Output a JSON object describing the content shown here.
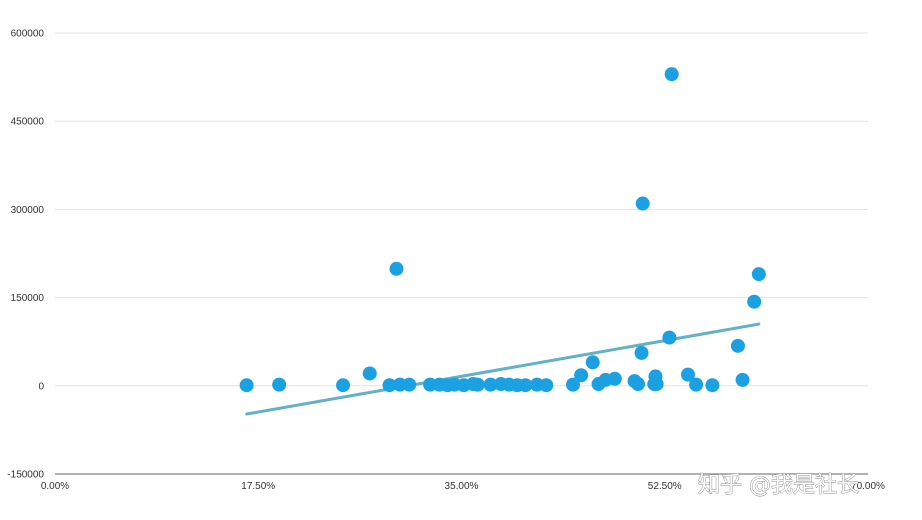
{
  "chart_data": {
    "type": "scatter",
    "title": "",
    "xlabel": "",
    "ylabel": "",
    "xlim": [
      0,
      70
    ],
    "ylim": [
      -150000,
      600000
    ],
    "x_ticks": [
      "0.00%",
      "17.50%",
      "35.00%",
      "52.50%",
      "70.00%"
    ],
    "y_ticks": [
      "600000",
      "450000",
      "300000",
      "150000",
      "0",
      "-150000"
    ],
    "grid": true,
    "point_color": "#1ba1e2",
    "trend_color": "#5fb4cc",
    "series": [
      {
        "values": [
          [
            16.5,
            1000
          ],
          [
            19.3,
            2000
          ],
          [
            24.8,
            1000
          ],
          [
            27.1,
            21000
          ],
          [
            28.8,
            1000
          ],
          [
            29.4,
            199000
          ],
          [
            29.7,
            2000
          ],
          [
            30.5,
            2000
          ],
          [
            32.3,
            2000
          ],
          [
            33.1,
            2000
          ],
          [
            33.8,
            1000
          ],
          [
            34.4,
            2000
          ],
          [
            35.2,
            1000
          ],
          [
            36.0,
            3000
          ],
          [
            36.4,
            2000
          ],
          [
            37.5,
            2000
          ],
          [
            38.4,
            3000
          ],
          [
            39.1,
            2000
          ],
          [
            39.8,
            1000
          ],
          [
            40.5,
            1000
          ],
          [
            41.5,
            2000
          ],
          [
            42.3,
            1000
          ],
          [
            44.6,
            2000
          ],
          [
            45.3,
            18000
          ],
          [
            46.3,
            40000
          ],
          [
            46.8,
            3000
          ],
          [
            47.4,
            10000
          ],
          [
            48.2,
            12000
          ],
          [
            49.9,
            8000
          ],
          [
            50.2,
            3000
          ],
          [
            50.5,
            56000
          ],
          [
            50.6,
            310000
          ],
          [
            51.6,
            3000
          ],
          [
            51.7,
            16000
          ],
          [
            51.8,
            3000
          ],
          [
            52.9,
            82000
          ],
          [
            53.1,
            530000
          ],
          [
            54.5,
            19000
          ],
          [
            55.2,
            2000
          ],
          [
            56.6,
            1000
          ],
          [
            58.8,
            68000
          ],
          [
            59.2,
            10000
          ],
          [
            60.2,
            143000
          ],
          [
            60.6,
            190000
          ]
        ]
      }
    ],
    "trendline": {
      "x": [
        16.5,
        60.6
      ],
      "y": [
        -48000,
        105000
      ]
    }
  },
  "watermark": {
    "text": "知乎 @我是社长"
  }
}
